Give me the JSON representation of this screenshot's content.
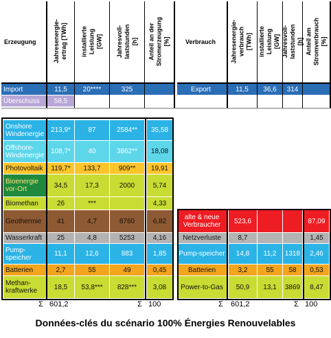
{
  "colors": {
    "blue": "#2a6eb6",
    "lavender": "#b7a6d6",
    "skyblue": "#2bb3e6",
    "lightcyan": "#5dd6ea",
    "yellow": "#ffc52a",
    "darkgreen": "#1f8a3d",
    "olive": "#c8dc33",
    "brown": "#8e5a33",
    "grey": "#b3b3b3",
    "orange": "#f2a51d",
    "red": "#ee1d23"
  },
  "left": {
    "title": "Erzeugung",
    "headers": [
      "Jahresenergie-ertrag [TWh]",
      "installierte Leistung [GW]",
      "Jahresvoll-laststunden [h]",
      "Anteil an der Stromerzeugung [%]"
    ],
    "rows": [
      {
        "label": "Import",
        "v": [
          "11,5",
          "20****",
          "325",
          ""
        ]
      },
      {
        "label": "Überschuss",
        "v": [
          "58,5",
          "",
          "",
          ""
        ]
      },
      {
        "label": "Onshore Windenergie",
        "v": [
          "213,9*",
          "87",
          "2584**",
          "35,58"
        ]
      },
      {
        "label": "Offshore-Windenergie",
        "v": [
          "108,7*",
          "40",
          "3862**",
          "18,08"
        ]
      },
      {
        "label": "Photovoltaik",
        "v": [
          "119,7*",
          "133,7",
          "909**",
          "19,91"
        ]
      },
      {
        "label": "Bioenergie vor-Ort",
        "v": [
          "34,5",
          "17,3",
          "2000",
          "5,74"
        ]
      },
      {
        "label": "Biomethan",
        "v": [
          "26",
          "***",
          "",
          "4,33"
        ]
      },
      {
        "label": "Geothermie",
        "v": [
          "41",
          "4,7",
          "8760",
          "6,82"
        ]
      },
      {
        "label": "Wasserkraft",
        "v": [
          "25",
          "4,8",
          "5253",
          "4,16"
        ]
      },
      {
        "label": "Pump-speicher",
        "v": [
          "11,1",
          "12,6",
          "883",
          "1,85"
        ]
      },
      {
        "label": "Batterien",
        "v": [
          "2,7",
          "55",
          "49",
          "0,45"
        ]
      },
      {
        "label": "Methan-kraftwerke",
        "v": [
          "18,5",
          "53,8***",
          "828***",
          "3,08"
        ]
      }
    ],
    "sigma1": "Σ",
    "total1": "601,2",
    "sigma2": "Σ",
    "total2": "100"
  },
  "right": {
    "title": "Verbrauch",
    "headers": [
      "Jahresenergie-verbrauch [TWh]",
      "installierte Leistung [GW]",
      "Jahresvoll-laststunden [h]",
      "Anteil am Stromverbrauch [%]"
    ],
    "rows": [
      {
        "label": "Export",
        "v": [
          "11,5",
          "36,6",
          "314",
          ""
        ]
      },
      {
        "label": "alte & neue Verbraucher",
        "v": [
          "523,6",
          "",
          "",
          "87,09"
        ]
      },
      {
        "label": "Netzverluste",
        "v": [
          "8,7",
          "",
          "",
          "1,45"
        ]
      },
      {
        "label": "Pump-speicher",
        "v": [
          "14,8",
          "11,2",
          "1318",
          "2,46"
        ]
      },
      {
        "label": "Batterien",
        "v": [
          "3,2",
          "55",
          "58",
          "0,53"
        ]
      },
      {
        "label": "Power-to-Gas",
        "v": [
          "50,9",
          "13,1",
          "3869",
          "8,47"
        ]
      }
    ],
    "sigma1": "Σ",
    "total1": "601,2",
    "sigma2": "Σ",
    "total2": "100"
  },
  "caption": "Données-clés du scénario 100% Énergies Renouvelables"
}
